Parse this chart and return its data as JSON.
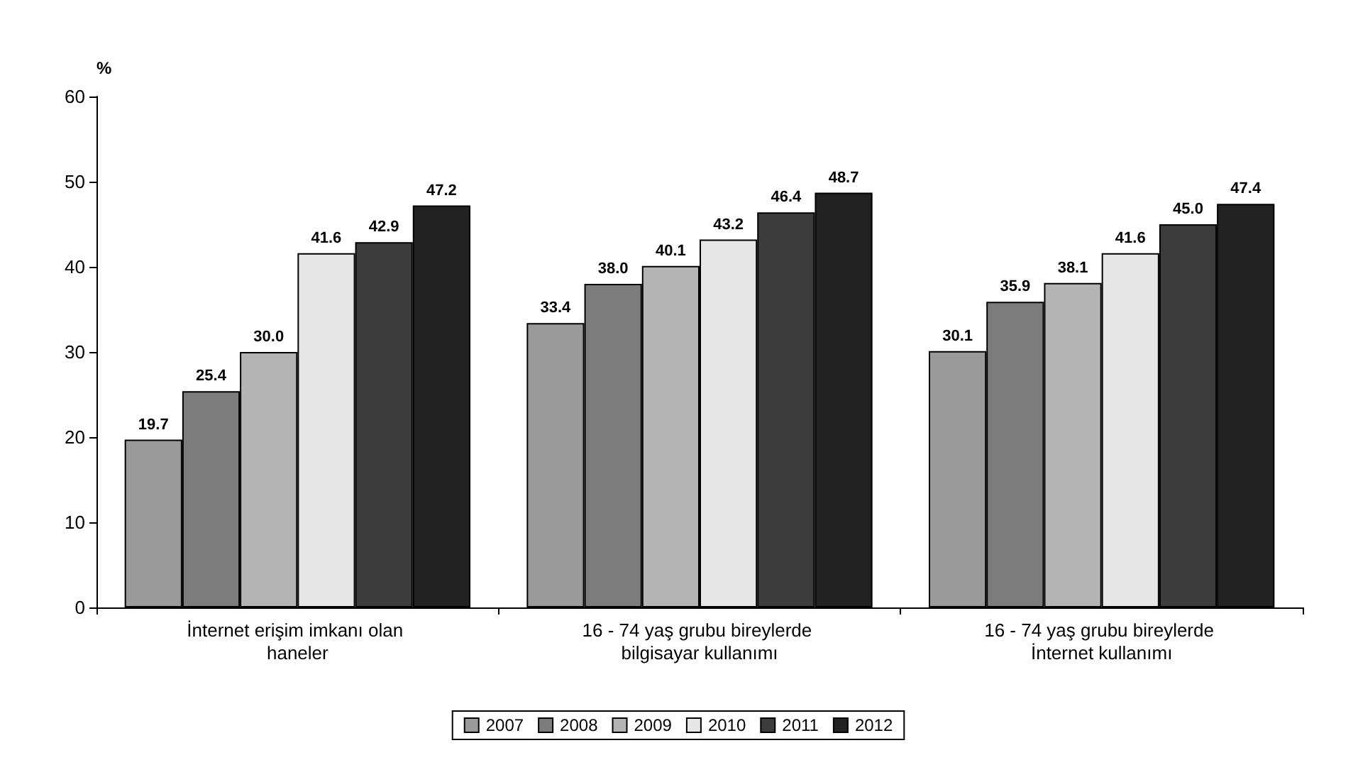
{
  "chart_data": {
    "type": "bar",
    "ylabel": "%",
    "categories": [
      "İnternet erişim imkanı olan haneler",
      "16 - 74 yaş grubu bireylerde bilgisayar kullanımı",
      "16 - 74 yaş grubu bireylerde İnternet kullanımı"
    ],
    "series": [
      {
        "name": "2007",
        "color": "#9a9a9a",
        "values": [
          19.7,
          33.4,
          30.1
        ],
        "value_labels": [
          "19.7",
          "33.4",
          "30.1"
        ]
      },
      {
        "name": "2008",
        "color": "#7c7c7c",
        "values": [
          25.4,
          38.0,
          35.9
        ],
        "value_labels": [
          "25.4",
          "38.0",
          "35.9"
        ]
      },
      {
        "name": "2009",
        "color": "#b4b4b4",
        "values": [
          30.0,
          40.1,
          38.1
        ],
        "value_labels": [
          "30.0",
          "40.1",
          "38.1"
        ]
      },
      {
        "name": "2010",
        "color": "#e6e6e6",
        "values": [
          41.6,
          43.2,
          41.6
        ],
        "value_labels": [
          "41.6",
          "43.2",
          "41.6"
        ]
      },
      {
        "name": "2011",
        "color": "#3c3c3c",
        "values": [
          42.9,
          46.4,
          45.0
        ],
        "value_labels": [
          "42.9",
          "46.4",
          "45.0"
        ]
      },
      {
        "name": "2012",
        "color": "#222222",
        "values": [
          47.2,
          48.7,
          47.4
        ],
        "value_labels": [
          "47.2",
          "48.7",
          "47.4"
        ]
      }
    ],
    "ylim": [
      0,
      60
    ],
    "yticks": [
      0,
      10,
      20,
      30,
      40,
      50,
      60
    ],
    "grid": false,
    "legend": "bottom"
  }
}
